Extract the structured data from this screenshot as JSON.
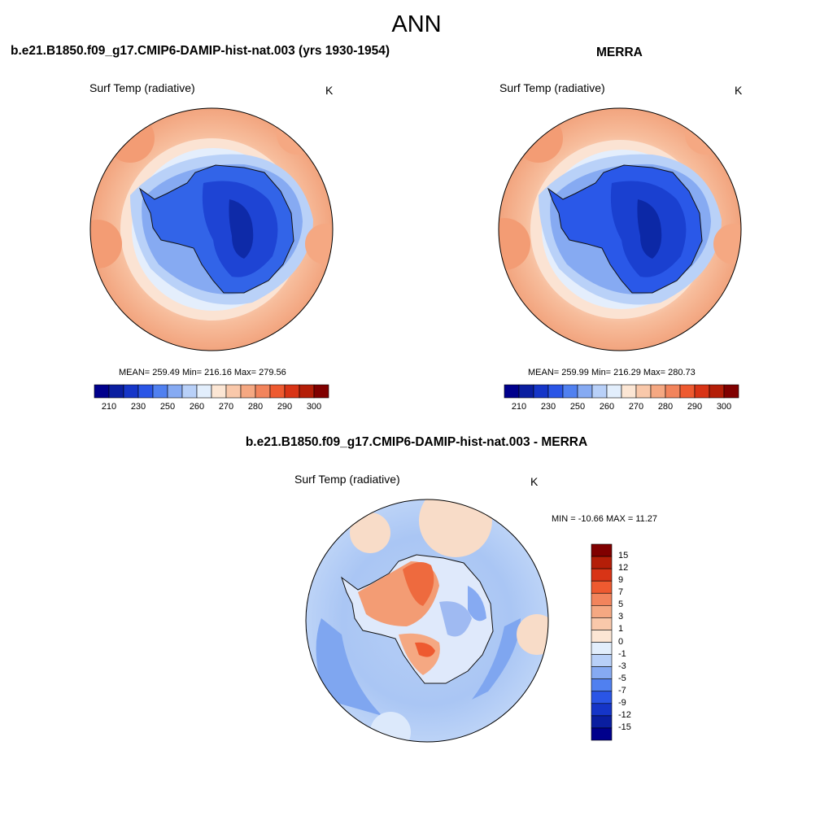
{
  "figure": {
    "season": "ANN"
  },
  "panels": [
    {
      "title": "b.e21.B1850.f09_g17.CMIP6-DAMIP-hist-nat.003 (yrs 1930-1954)",
      "variable": "Surf Temp (radiative)",
      "units": "K",
      "stats_text": "MEAN= 259.49  Min= 216.16  Max= 279.56",
      "stats": {
        "mean": 259.49,
        "min": 216.16,
        "max": 279.56
      }
    },
    {
      "title": "MERRA",
      "variable": "Surf Temp (radiative)",
      "units": "K",
      "stats_text": "MEAN= 259.99  Min= 216.29  Max= 280.73",
      "stats": {
        "mean": 259.99,
        "min": 216.29,
        "max": 280.73
      }
    },
    {
      "title": "b.e21.B1850.f09_g17.CMIP6-DAMIP-hist-nat.003 - MERRA",
      "variable": "Surf Temp (radiative)",
      "units": "K",
      "stats_text": "MIN = -10.66 MAX =  11.27",
      "stats": {
        "min": -10.66,
        "max": 11.27
      }
    }
  ],
  "colorbars": {
    "absolute": {
      "levels": [
        "210",
        "230",
        "250",
        "260",
        "270",
        "280",
        "290",
        "300"
      ],
      "colors": [
        "#00008c",
        "#0a1ea0",
        "#1535c8",
        "#2a55e6",
        "#5080f0",
        "#86aaf2",
        "#b8d0f8",
        "#e2eefc",
        "#fce6d4",
        "#f9c8aa",
        "#f5a882",
        "#f2845c",
        "#ee5a30",
        "#d83416",
        "#b41e08",
        "#800000"
      ]
    },
    "difference": {
      "levels": [
        "15",
        "12",
        "9",
        "7",
        "5",
        "3",
        "1",
        "0",
        "-1",
        "-3",
        "-5",
        "-7",
        "-9",
        "-12",
        "-15"
      ],
      "colors": [
        "#800000",
        "#b41e08",
        "#d83416",
        "#ee5a30",
        "#f2845c",
        "#f5a882",
        "#f9c8aa",
        "#fce6d4",
        "#e2eefc",
        "#b8d0f8",
        "#86aaf2",
        "#5080f0",
        "#2a55e6",
        "#1535c8",
        "#0a1ea0",
        "#00008c"
      ]
    }
  },
  "chart_data": [
    {
      "type": "heatmap",
      "title": "b.e21.B1850.f09_g17.CMIP6-DAMIP-hist-nat.003 (yrs 1930-1954)",
      "variable": "Surf Temp (radiative)",
      "units": "K",
      "projection": "south polar stereographic",
      "contour_levels": [
        210,
        230,
        250,
        260,
        270,
        280,
        290,
        300
      ],
      "mean": 259.49,
      "min": 216.16,
      "max": 279.56
    },
    {
      "type": "heatmap",
      "title": "MERRA",
      "variable": "Surf Temp (radiative)",
      "units": "K",
      "projection": "south polar stereographic",
      "contour_levels": [
        210,
        230,
        250,
        260,
        270,
        280,
        290,
        300
      ],
      "mean": 259.99,
      "min": 216.29,
      "max": 280.73
    },
    {
      "type": "heatmap",
      "title": "b.e21.B1850.f09_g17.CMIP6-DAMIP-hist-nat.003 - MERRA",
      "variable": "Surf Temp (radiative)",
      "units": "K",
      "projection": "south polar stereographic",
      "contour_levels": [
        -15,
        -12,
        -9,
        -7,
        -5,
        -3,
        -1,
        0,
        1,
        3,
        5,
        7,
        9,
        12,
        15
      ],
      "min": -10.66,
      "max": 11.27
    }
  ]
}
